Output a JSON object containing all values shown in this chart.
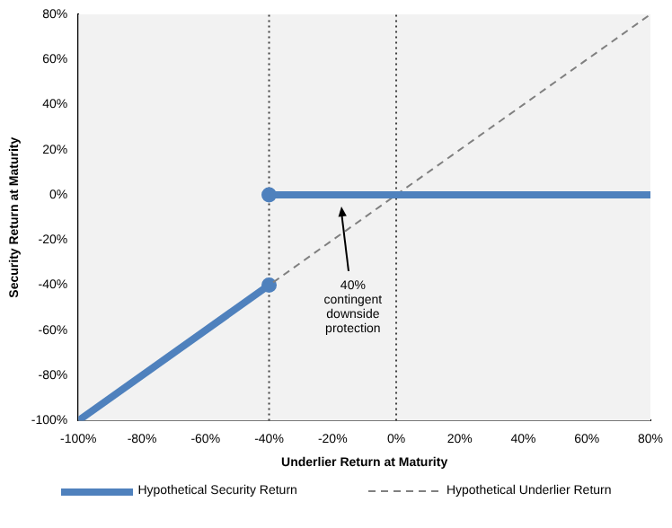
{
  "chart_data": {
    "type": "line",
    "xlabel": "Underlier Return at Maturity",
    "ylabel": "Security Return at Maturity",
    "xlim": [
      -100,
      80
    ],
    "ylim": [
      -100,
      80
    ],
    "xticks": [
      {
        "value": -100,
        "label": "-100%"
      },
      {
        "value": -80,
        "label": "-80%"
      },
      {
        "value": -60,
        "label": "-60%"
      },
      {
        "value": -40,
        "label": "-40%"
      },
      {
        "value": -20,
        "label": "-20%"
      },
      {
        "value": 0,
        "label": "0%"
      },
      {
        "value": 20,
        "label": "20%"
      },
      {
        "value": 40,
        "label": "40%"
      },
      {
        "value": 60,
        "label": "60%"
      },
      {
        "value": 80,
        "label": "80%"
      }
    ],
    "yticks": [
      {
        "value": -100,
        "label": "-100%"
      },
      {
        "value": -80,
        "label": "-80%"
      },
      {
        "value": -60,
        "label": "-60%"
      },
      {
        "value": -40,
        "label": "-40%"
      },
      {
        "value": -20,
        "label": "-20%"
      },
      {
        "value": 0,
        "label": "0%"
      },
      {
        "value": 20,
        "label": "20%"
      },
      {
        "value": 40,
        "label": "40%"
      },
      {
        "value": 60,
        "label": "60%"
      },
      {
        "value": 80,
        "label": "80%"
      }
    ],
    "grid": false,
    "legend": "bottom",
    "marker": "none",
    "series": [
      {
        "name": "Hypothetical Security Return",
        "color": "#4f81bd",
        "x": [
          -40,
          80
        ],
        "values": [
          0,
          0
        ],
        "line_style": "solid"
      },
      {
        "color": "#4f81bd",
        "x": [
          -100,
          -40
        ],
        "values": [
          -100,
          -40
        ],
        "line_style": "solid"
      },
      {
        "name": "Hypothetical Underlier Return",
        "color": "#808080",
        "x": [
          -100,
          80
        ],
        "values": [
          -100,
          80
        ],
        "line_style": "dashed"
      },
      {
        "type": "scatter",
        "color": "#4f81bd",
        "x": [
          -40
        ],
        "values": [
          0
        ],
        "marker": "circle"
      },
      {
        "type": "scatter",
        "color": "#4f81bd",
        "x": [
          -40
        ],
        "values": [
          -40
        ],
        "marker": "circle"
      }
    ],
    "ref_lines": [
      {
        "axis": "x",
        "value": -40,
        "color": "#404040",
        "line_style": "dotted"
      },
      {
        "axis": "x",
        "value": 0,
        "color": "#404040",
        "line_style": "dotted"
      }
    ],
    "annotations": [
      {
        "text": "40%\ncontingent\ndownside\nprotection",
        "x": -17,
        "y": -2
      }
    ]
  }
}
